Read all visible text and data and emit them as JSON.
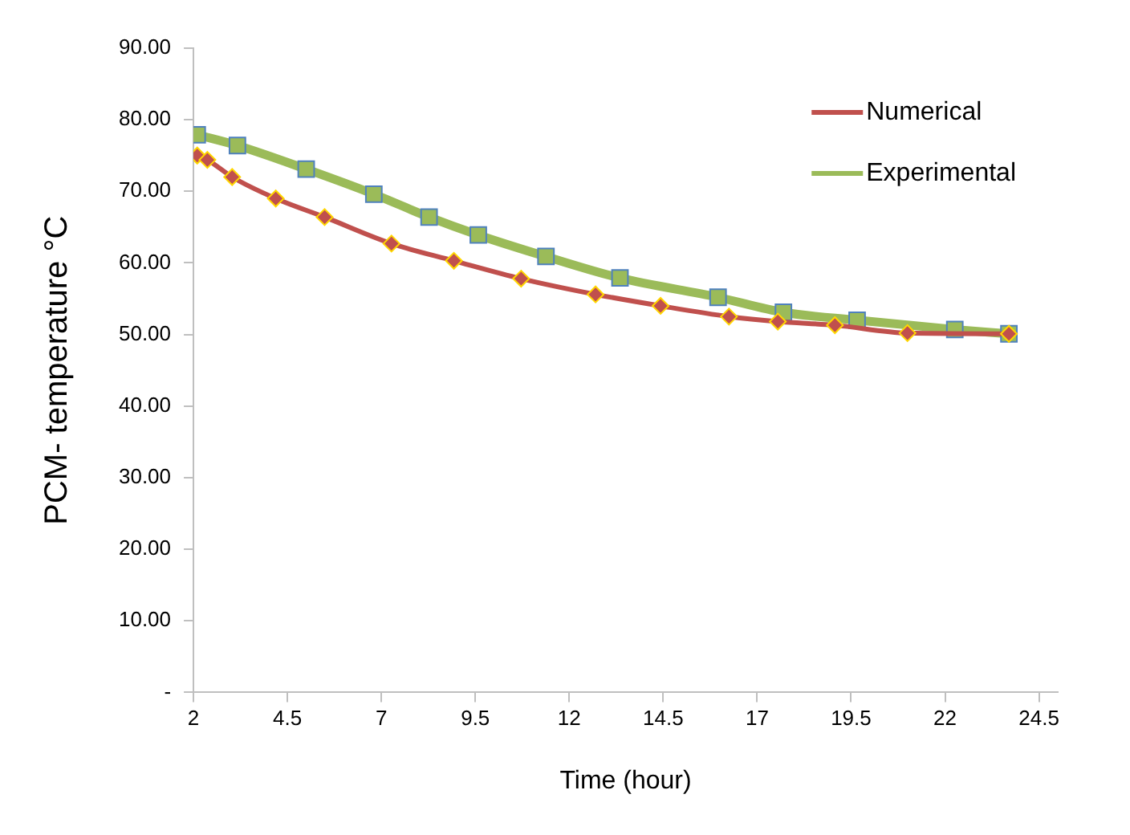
{
  "chart_data": {
    "type": "line",
    "xlabel": "Time (hour)",
    "ylabel": "PCM- temperature °C",
    "xlim": [
      2,
      25
    ],
    "xticks": [
      2,
      4.5,
      7,
      9.5,
      12,
      14.5,
      17,
      19.5,
      22,
      24.5
    ],
    "ylim": [
      0,
      90
    ],
    "yticks": [
      {
        "value": 0,
        "label": "-"
      },
      {
        "value": 10,
        "label": "10.00"
      },
      {
        "value": 20,
        "label": "20.00"
      },
      {
        "value": 30,
        "label": "30.00"
      },
      {
        "value": 40,
        "label": "40.00"
      },
      {
        "value": 50,
        "label": "50.00"
      },
      {
        "value": 60,
        "label": "60.00"
      },
      {
        "value": 70,
        "label": "70.00"
      },
      {
        "value": 80,
        "label": "80.00"
      },
      {
        "value": 90,
        "label": "90.00"
      }
    ],
    "grid": false,
    "legend": "top right",
    "series": [
      {
        "name": "Numerical",
        "color": "#c0504d",
        "marker": "diamond",
        "x": [
          2.1,
          2.37,
          3.03,
          4.19,
          5.49,
          7.27,
          8.93,
          10.72,
          12.7,
          14.43,
          16.25,
          17.55,
          19.07,
          21.0,
          23.7
        ],
        "values": [
          75.0,
          74.4,
          72.0,
          69.0,
          66.4,
          62.7,
          60.3,
          57.8,
          55.6,
          54.0,
          52.5,
          51.8,
          51.3,
          50.2,
          50.1
        ]
      },
      {
        "name": "Experimental",
        "color": "#9bbb59",
        "marker": "square",
        "x": [
          2.1,
          3.17,
          5.0,
          6.8,
          8.27,
          9.58,
          11.38,
          13.35,
          15.96,
          17.7,
          19.66,
          22.26,
          23.7
        ],
        "values": [
          77.9,
          76.4,
          73.1,
          69.6,
          66.4,
          63.9,
          60.9,
          57.9,
          55.2,
          53.1,
          52.0,
          50.7,
          50.1
        ]
      }
    ]
  }
}
